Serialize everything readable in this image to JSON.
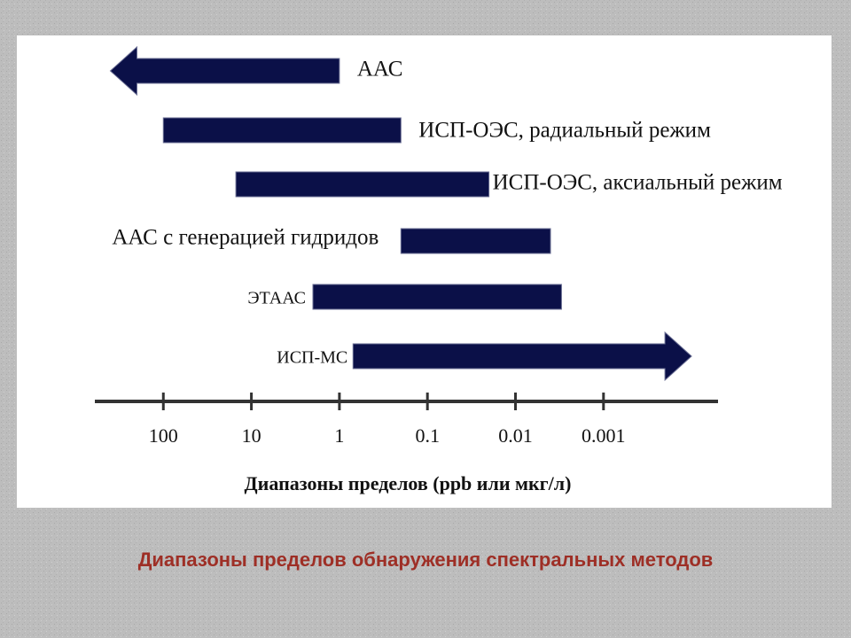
{
  "chart_data": {
    "type": "range",
    "xlabel": "Диапазоны  пределов (ppb или мкг/л)",
    "caption": "Диапазоны пределов обнаружения спектральных методов",
    "xscale": "log",
    "xlim": [
      600,
      5e-05
    ],
    "xticks": [
      100,
      10,
      1,
      0.1,
      0.01,
      0.001
    ],
    "color": "#0b1048",
    "series": [
      {
        "name": "ААС",
        "values": [
          400,
          1
        ],
        "arrow": "start"
      },
      {
        "name": "ИСП-ОЭС, радиальный режим",
        "values": [
          100,
          0.2
        ]
      },
      {
        "name": "ИСП-ОЭС, аксиальный режим",
        "values": [
          15,
          0.02
        ]
      },
      {
        "name": "ААС с генерацией гидридов",
        "values": [
          0.2,
          0.004
        ]
      },
      {
        "name": "ЭТААС",
        "values": [
          2,
          0.003
        ]
      },
      {
        "name": "ИСП-МС",
        "values": [
          0.7,
          0.0001
        ],
        "arrow": "end"
      }
    ]
  }
}
